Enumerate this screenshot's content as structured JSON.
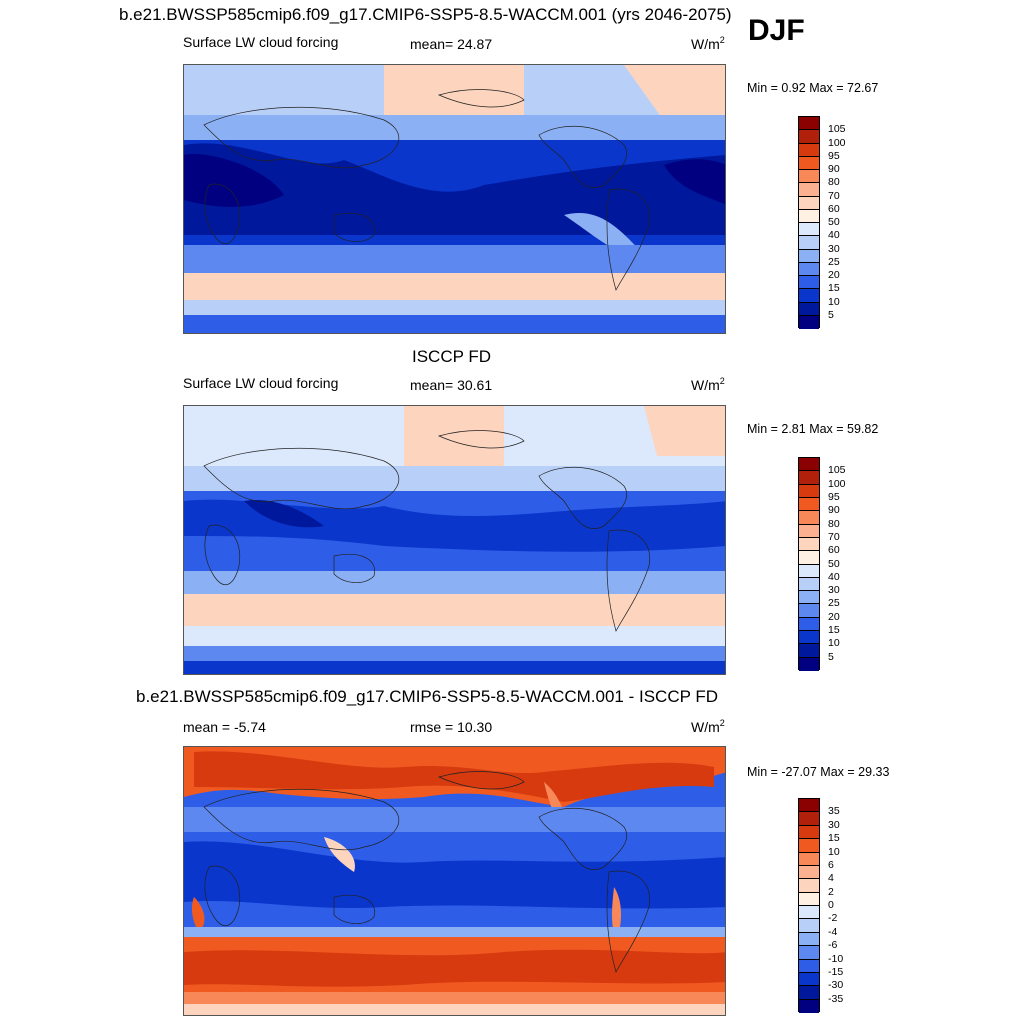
{
  "header": {
    "title": "b.e21.BWSSP585cmip6.f09_g17.CMIP6-SSP5-8.5-WACCM.001 (yrs 2046-2075)",
    "season": "DJF"
  },
  "panels": [
    {
      "title": "",
      "left": "Surface LW cloud forcing",
      "center": "mean=  24.87",
      "units": "W/m",
      "units_sup": "2",
      "minmax": "Min =   0.92 Max =  72.67",
      "levels": [
        "105",
        "100",
        "95",
        "90",
        "80",
        "70",
        "60",
        "50",
        "40",
        "30",
        "25",
        "20",
        "15",
        "10",
        "5"
      ]
    },
    {
      "title": "ISCCP FD",
      "left": "Surface LW cloud forcing",
      "center": "mean=  30.61",
      "units": "W/m",
      "units_sup": "2",
      "minmax": "Min =   2.81 Max =  59.82",
      "levels": [
        "105",
        "100",
        "95",
        "90",
        "80",
        "70",
        "60",
        "50",
        "40",
        "30",
        "25",
        "20",
        "15",
        "10",
        "5"
      ]
    },
    {
      "title": "b.e21.BWSSP585cmip6.f09_g17.CMIP6-SSP5-8.5-WACCM.001 - ISCCP FD",
      "left": "mean =  -5.74",
      "center": "rmse =  10.30",
      "units": "W/m",
      "units_sup": "2",
      "minmax": "Min = -27.07 Max =  29.33",
      "levels": [
        "35",
        "30",
        "15",
        "10",
        "6",
        "4",
        "2",
        "0",
        "-2",
        "-4",
        "-6",
        "-10",
        "-15",
        "-30",
        "-35"
      ]
    }
  ],
  "colors": {
    "abs_scale": [
      "#8b0000",
      "#b0200a",
      "#d83a10",
      "#f05a20",
      "#f88858",
      "#fbb090",
      "#fdd4be",
      "#fff0e4",
      "#dce8fc",
      "#b8d0f8",
      "#8cb0f4",
      "#5c88f0",
      "#2e5ee8",
      "#0a36cc",
      "#00189c",
      "#000080"
    ],
    "diff_scale": [
      "#8b0000",
      "#b0200a",
      "#d83a10",
      "#f05a20",
      "#f88858",
      "#fbb090",
      "#fdd4be",
      "#fff0e4",
      "#ffffff",
      "#dce8fc",
      "#b8d0f8",
      "#8cb0f4",
      "#5c88f0",
      "#2e5ee8",
      "#0a36cc",
      "#00189c",
      "#000080"
    ]
  },
  "chart_data": [
    {
      "type": "heatmap",
      "title": "b.e21.BWSSP585cmip6.f09_g17.CMIP6-SSP5-8.5-WACCM.001 (yrs 2046-2075)",
      "subtitle": "Surface LW cloud forcing",
      "season": "DJF",
      "units": "W/m2",
      "mean": 24.87,
      "min": 0.92,
      "max": 72.67,
      "contour_levels": [
        5,
        10,
        15,
        20,
        25,
        30,
        40,
        50,
        60,
        70,
        80,
        90,
        95,
        100,
        105
      ]
    },
    {
      "type": "heatmap",
      "title": "ISCCP FD",
      "subtitle": "Surface LW cloud forcing",
      "units": "W/m2",
      "mean": 30.61,
      "min": 2.81,
      "max": 59.82,
      "contour_levels": [
        5,
        10,
        15,
        20,
        25,
        30,
        40,
        50,
        60,
        70,
        80,
        90,
        95,
        100,
        105
      ]
    },
    {
      "type": "heatmap",
      "title": "b.e21.BWSSP585cmip6.f09_g17.CMIP6-SSP5-8.5-WACCM.001 - ISCCP FD",
      "units": "W/m2",
      "mean": -5.74,
      "rmse": 10.3,
      "min": -27.07,
      "max": 29.33,
      "contour_levels": [
        -35,
        -30,
        -15,
        -10,
        -6,
        -4,
        -2,
        0,
        2,
        4,
        6,
        10,
        15,
        30,
        35
      ]
    }
  ]
}
